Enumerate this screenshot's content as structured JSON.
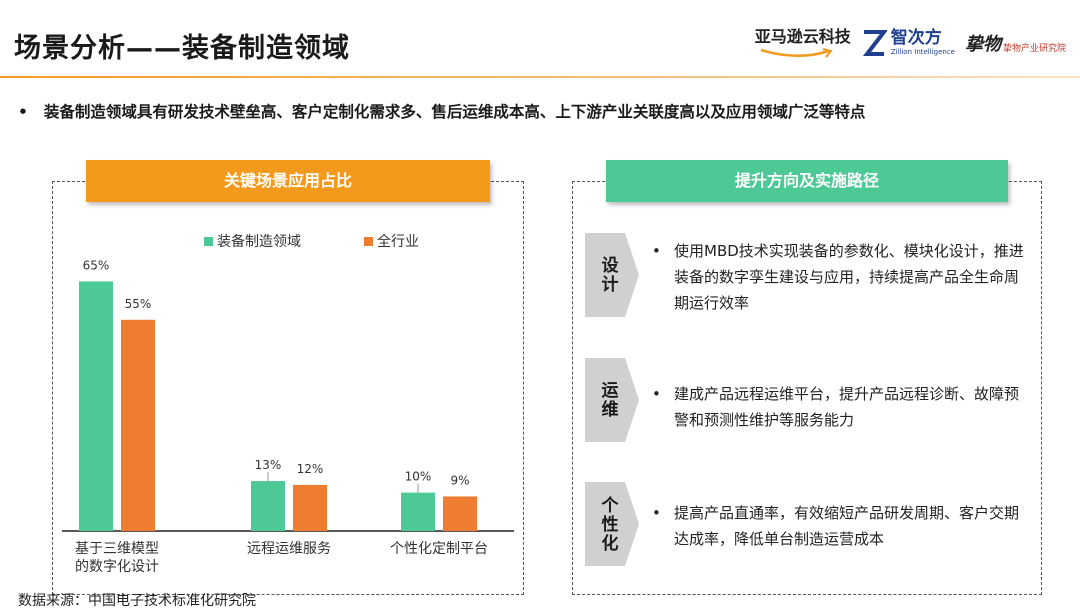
{
  "header": {
    "title": "场景分析——装备制造领域",
    "logos": {
      "amazon": "亚马逊云科技",
      "zilion_name": "智次方",
      "zilion_sub": "Zillion Intelligence",
      "zy_mark": "挚物",
      "zy_text": "挚物产业研究院"
    }
  },
  "bullet": {
    "dot": "•",
    "text": "装备制造领域具有研发技术壁垒高、客户定制化需求多、售后运维成本高、上下游产业关联度高以及应用领域广泛等特点"
  },
  "left_panel": {
    "title": "关键场景应用占比"
  },
  "right_panel": {
    "title": "提升方向及实施路径",
    "rows": [
      {
        "tag": "设计",
        "text": "使用MBD技术实现装备的参数化、模块化设计，推进装备的数字孪生建设与应用，持续提高产品全生命周期运行效率"
      },
      {
        "tag": "运维",
        "text": "建成产品远程运维平台，提升产品远程诊断、故障预警和预测性维护等服务能力"
      },
      {
        "tag": "个性化",
        "text": "提高产品直通率，有效缩短产品研发周期、客户交期达成率，降低单台制造运营成本"
      }
    ]
  },
  "source": "数据来源：中国电子技术标准化研究院",
  "colors": {
    "orange": "#f39a1c",
    "green": "#4cc996",
    "bar_green": "#4cc996",
    "bar_orange": "#ee7d31"
  },
  "chart_data": {
    "type": "bar",
    "title": "",
    "xlabel": "",
    "ylabel": "",
    "ylim": [
      0,
      70
    ],
    "grid": false,
    "legend": "top",
    "categories": [
      "基于三维模型的数字化设计",
      "远程运维服务",
      "个性化定制平台"
    ],
    "category_lines": [
      [
        "基于三维模型",
        "的数字化设计"
      ],
      [
        "远程运维服务"
      ],
      [
        "个性化定制平台"
      ]
    ],
    "series": [
      {
        "name": "装备制造领域",
        "values": [
          65,
          13,
          10
        ],
        "labels": [
          "65%",
          "13%",
          "10%"
        ],
        "color": "#4cc996"
      },
      {
        "name": "全行业",
        "values": [
          55,
          12,
          9
        ],
        "labels": [
          "55%",
          "12%",
          "9%"
        ],
        "color": "#ee7d31"
      }
    ]
  }
}
